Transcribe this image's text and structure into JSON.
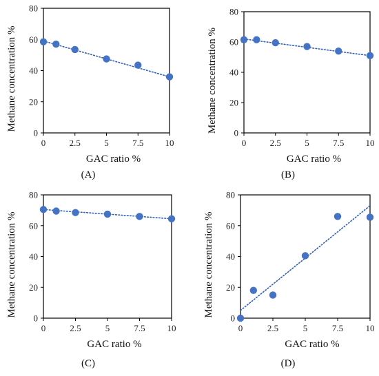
{
  "colors": {
    "marker": "#4472C4",
    "trendline": "#2E5FB8",
    "frame": "#000000"
  },
  "chart_data": [
    {
      "panel": "(A)",
      "type": "scatter",
      "xlabel": "GAC ratio   %",
      "ylabel": "Methane concentration   %",
      "xlim": [
        0,
        10
      ],
      "ylim": [
        0,
        80
      ],
      "xticks": [
        0,
        2.5,
        5,
        7.5,
        10
      ],
      "yticks": [
        0,
        20,
        40,
        60,
        80
      ],
      "xtick_labels": [
        "0",
        "2.5",
        "5",
        "7.5",
        "10"
      ],
      "ytick_labels": [
        "0",
        "20",
        "40",
        "60",
        "80"
      ],
      "series": [
        {
          "x": [
            0,
            1,
            2.5,
            5,
            7.5,
            10
          ],
          "y": [
            58.5,
            57,
            53.5,
            47.5,
            43.5,
            36
          ]
        }
      ],
      "trendline": {
        "type": "linear",
        "from": [
          0,
          59
        ],
        "to": [
          10,
          36
        ]
      }
    },
    {
      "panel": "(B)",
      "type": "scatter",
      "xlabel": "GAC ratio   %",
      "ylabel": "Methane concentration   %",
      "xlim": [
        0,
        10
      ],
      "ylim": [
        0,
        80
      ],
      "xticks": [
        0,
        2.5,
        5,
        7.5,
        10
      ],
      "yticks": [
        0,
        20,
        40,
        60,
        80
      ],
      "xtick_labels": [
        "0",
        "2.5",
        "5",
        "7.5",
        "10"
      ],
      "ytick_labels": [
        "0",
        "20",
        "40",
        "60",
        "80"
      ],
      "series": [
        {
          "x": [
            0,
            1,
            2.5,
            5,
            7.5,
            10
          ],
          "y": [
            61.5,
            61.5,
            59.5,
            57,
            54,
            51
          ]
        }
      ],
      "trendline": {
        "type": "linear",
        "from": [
          0,
          62
        ],
        "to": [
          10,
          51
        ]
      }
    },
    {
      "panel": "(C)",
      "type": "scatter",
      "xlabel": "GAC ratio   %",
      "ylabel": "Methane concentration   %",
      "xlim": [
        0,
        10
      ],
      "ylim": [
        0,
        80
      ],
      "xticks": [
        0,
        2.5,
        5,
        7.5,
        10
      ],
      "yticks": [
        0,
        20,
        40,
        60,
        80
      ],
      "xtick_labels": [
        "0",
        "2.5",
        "5",
        "7.5",
        "10"
      ],
      "ytick_labels": [
        "0",
        "20",
        "40",
        "60",
        "80"
      ],
      "series": [
        {
          "x": [
            0,
            1,
            2.5,
            5,
            7.5,
            10
          ],
          "y": [
            70.5,
            69.5,
            68.5,
            67.5,
            66,
            64.5
          ]
        }
      ],
      "trendline": {
        "type": "linear",
        "from": [
          0,
          70.5
        ],
        "to": [
          10,
          64.5
        ]
      }
    },
    {
      "panel": "(D)",
      "type": "scatter",
      "xlabel": "GAC ratio   %",
      "ylabel": "Methane concentration   %",
      "xlim": [
        0,
        10
      ],
      "ylim": [
        0,
        80
      ],
      "xticks": [
        0,
        2.5,
        5,
        7.5,
        10
      ],
      "yticks": [
        0,
        20,
        40,
        60,
        80
      ],
      "xtick_labels": [
        "0",
        "2.5",
        "5",
        "7.5",
        "10"
      ],
      "ytick_labels": [
        "0",
        "20",
        "40",
        "60",
        "80"
      ],
      "series": [
        {
          "x": [
            0,
            1,
            2.5,
            5,
            7.5,
            10
          ],
          "y": [
            0,
            18,
            15,
            40.5,
            66,
            65.5
          ]
        }
      ],
      "trendline": {
        "type": "linear",
        "from": [
          0,
          5
        ],
        "to": [
          10,
          73
        ]
      }
    }
  ]
}
